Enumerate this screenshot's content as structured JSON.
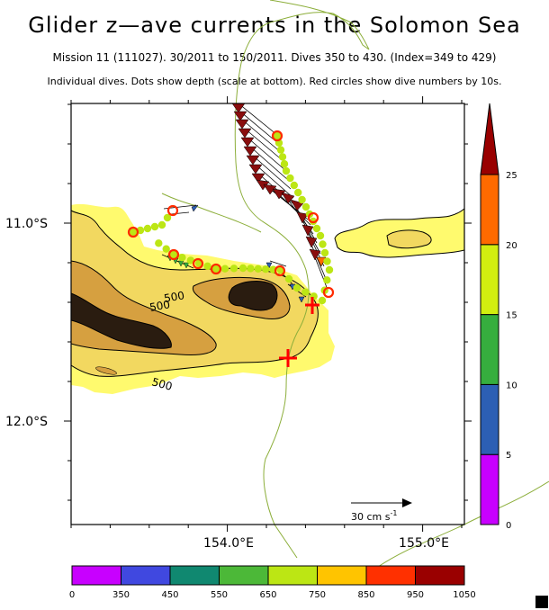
{
  "title": "Glider z—ave currents in the Solomon Sea",
  "subtitle_mission": "Mission 11 (111027). 30/2011 to 150/2011. Dives 350 to 430. (Index=349 to 429)",
  "subtitle_desc": "Individual dives. Dots show depth (scale at bottom). Red circles show dive numbers by 10s.",
  "axes": {
    "x_ticks": [
      {
        "label": "154.0°E",
        "value": 154.0
      },
      {
        "label": "155.0°E",
        "value": 155.0
      }
    ],
    "y_ticks": [
      {
        "label": "11.0°S",
        "value": -11.0
      },
      {
        "label": "12.0°S",
        "value": -12.0
      }
    ],
    "lon_range": [
      153.2,
      155.2
    ],
    "lat_range": [
      -12.5,
      -10.375
    ]
  },
  "contour_label": "500",
  "scale_arrow_label": "30 cm s",
  "scale_arrow_exponent": "-1",
  "speed_colorbar": {
    "labels": [
      "0",
      "5",
      "10",
      "15",
      "20",
      "25"
    ],
    "colors": [
      "#c800ff",
      "#2c5fb4",
      "#36ae3e",
      "#d2ee10",
      "#ff6a00"
    ],
    "overflow_color": "#990000"
  },
  "depth_colorbar": {
    "labels": [
      "0",
      "350",
      "450",
      "550",
      "650",
      "750",
      "850",
      "950",
      "1050"
    ],
    "colors": [
      "#c800ff",
      "#4048e0",
      "#108870",
      "#4cb838",
      "#bce614",
      "#ffc400",
      "#ff3000",
      "#9a0000"
    ]
  },
  "colors": {
    "land_shallow": "#fffa6e",
    "land_mid": "#f2d860",
    "land_deep": "#d6a040",
    "land_peak": "#2a1c10",
    "track": "#8cae3a",
    "dot": "#bce614",
    "dive_marker": "#ff2a00",
    "arrow_fill": "#8a0e0e",
    "cross": "#ff0000"
  }
}
